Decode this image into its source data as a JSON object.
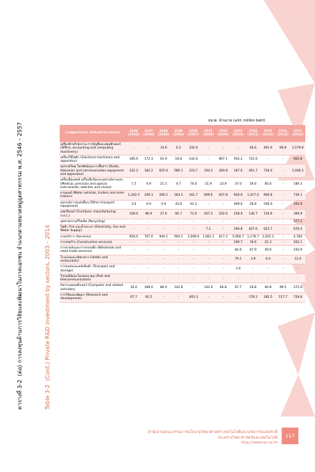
{
  "header": {
    "label_th": "ตารางที่ 3-2",
    "title_th": "(ต่อ) การลงทุนด้านการวิจัยและพัฒนาในภาคเอกชน จำแนกตามหมวดหมู่อุตสาหกรรม พ.ศ. 2546 – 2557",
    "label_en": "Table 3-2",
    "title_en": "(Cont.) Private R&D investment by sectors, 2003 – 2014",
    "unit": "หน่วย: ล้านบาท (unit: million baht)"
  },
  "table": {
    "corner": "ภาคอุตสาหกรรม (Industrial sector)",
    "columns": [
      {
        "th": "2546",
        "en": "(2003)"
      },
      {
        "th": "2547",
        "en": "(2004)"
      },
      {
        "th": "2548",
        "en": "(2005)"
      },
      {
        "th": "2549",
        "en": "(2006)"
      },
      {
        "th": "2550",
        "en": "(2007)"
      },
      {
        "th": "2551",
        "en": "(2008)"
      },
      {
        "th": "2552",
        "en": "(2009)"
      },
      {
        "th": "2553",
        "en": "(2010)"
      },
      {
        "th": "2554",
        "en": "(2011)"
      },
      {
        "th": "2555",
        "en": "(2012)"
      },
      {
        "th": "2556",
        "en": "(2013)"
      },
      {
        "th": "2557",
        "en": "(2014)"
      }
    ],
    "rows": [
      {
        "label": "เครื่องจักรสำนักงาน การบัญชีและคอมพิวเตอร์ (Office, accounting and computing machinery)",
        "values": [
          "-",
          "-",
          "14.6",
          "0.2",
          "332.6",
          "-",
          "-",
          "-",
          "46.6",
          "491.6",
          "69.8",
          "1,579.6"
        ]
      },
      {
        "label": "เครื่องใช้ไฟฟ้า (Electrical machinery and apparatus)",
        "values": [
          "185.6",
          "172.3",
          "61.9",
          "18.6",
          "142.6",
          "-",
          "867.1",
          "932.2",
          "722.6",
          "-",
          "-",
          "602.8"
        ]
      },
      {
        "label": "อุปกรณ์วิทยุ โทรทัศน์และการสื่อสาร (Radio, television and communication equipment and apparatus)",
        "values": [
          "222.2",
          "182.2",
          "625.6",
          "580.1",
          "223.7",
          "194.2",
          "200.8",
          "187.6",
          "461.7",
          "726.0",
          "-",
          "1,006.2"
        ]
      },
      {
        "label": "เครื่องมือแพทย์ เครื่องมือวัดและอุปกรณ์ทางแสง (Medical, precision and optical instruments, watches and clocks)",
        "values": [
          "7.5",
          "4.9",
          "21.1",
          "4.7",
          "70.6",
          "21.9",
          "23.9",
          "37.0",
          "56.6",
          "85.6",
          "-",
          "180.3"
        ]
      },
      {
        "label": "ยานยนต์ (Motor vehicles, trailers and semi-trailers)",
        "values": [
          "1,202.5",
          "169.1",
          "290.1",
          "183.3",
          "161.7",
          "609.6",
          "657.8",
          "920.6",
          "1,017.0",
          "900.8",
          "-",
          "739.1"
        ]
      },
      {
        "label": "อุปกรณ์การขนส่งอื่นๆ (Other transport equipment)",
        "values": [
          "3.6",
          "0.0",
          "0.0",
          "43.8",
          "42.3",
          "-",
          "-",
          "469.6",
          "26.8",
          "500.0",
          "-",
          "162.8"
        ]
      },
      {
        "label": "เฟอร์นิเจอร์ (Furniture; manufacturing n.e.c.)",
        "values": [
          "109.6",
          "96.9",
          "27.6",
          "66.7",
          "71.0",
          "207.2",
          "202.6",
          "258.9",
          "136.7",
          "116.9",
          "-",
          "390.9"
        ]
      },
      {
        "label": "อุตสาหกรรมรีไซเคิล (Recycling)",
        "values": [
          "-",
          "-",
          "-",
          "-",
          "-",
          "-",
          "-",
          "-",
          "-",
          "-",
          "-",
          "377.2"
        ]
      },
      {
        "label": "ไฟฟ้า ก๊าซ และน้ำประปา (Electricity, Gas and Water Supply)",
        "values": [
          "-",
          "-",
          "-",
          "-",
          "-",
          "7.2",
          "-",
          "200.8",
          "427.6",
          "623.7",
          "-",
          "676.4"
        ]
      },
      {
        "label": "ภาคบริการ (Services)",
        "values": [
          "926.0",
          "767.0",
          "944.1",
          "904.1",
          "1,008.6",
          "1,081.1",
          "617.2",
          "5,960.7",
          "1,178.7",
          "1,025.3",
          "-",
          "4,784"
        ]
      },
      {
        "label": "การก่อสร้าง (Construction services)",
        "values": [
          "-",
          "-",
          "-",
          "-",
          "-",
          "-",
          "-",
          "200.7",
          "16.6",
          "21.3",
          "-",
          "162.1"
        ]
      },
      {
        "label": "การขายส่งและการขายปลีก (Wholesale and retail trade services)",
        "values": [
          "-",
          "-",
          "-",
          "-",
          "-",
          "-",
          "-",
          "84.6",
          "67.9",
          "49.0",
          "-",
          "192.9"
        ]
      },
      {
        "label": "โรงแรมและภัตตาคาร (Hotels and restaurants)",
        "values": [
          "-",
          "-",
          "-",
          "-",
          "-",
          "-",
          "-",
          "79.1",
          "3.9",
          "6.0",
          "-",
          "12.0"
        ]
      },
      {
        "label": "การขนส่งและคลังสินค้า (Transport and storage)",
        "values": [
          "-",
          "-",
          "-",
          "-",
          "-",
          "-",
          "-",
          "1.6",
          "-",
          "-",
          "-",
          "-"
        ]
      },
      {
        "label": "ไปรษณีย์และโทรคมนาคม (Post and telecommunication)",
        "values": [
          "-",
          "-",
          "-",
          "-",
          "-",
          "-",
          "-",
          "-",
          "-",
          "-",
          "-",
          "-"
        ]
      },
      {
        "label": "กิจกรรมคอมพิวเตอร์ (Computer and related activities)",
        "values": [
          "30.0",
          "189.0",
          "86.0",
          "142.8",
          "-",
          "142.9",
          "66.8",
          "67.7",
          "29.8",
          "90.8",
          "99.5",
          "272.6"
        ]
      },
      {
        "label": "การวิจัยและพัฒนา (Research and development)",
        "values": [
          "67.7",
          "92.5",
          "-",
          "-",
          "403.3",
          "-",
          "-",
          "-",
          "178.2",
          "182.5",
          "117.7",
          "728.8"
        ]
      }
    ]
  },
  "footer": {
    "line1": "สำนักงานคณะกรรมการนโยบายวิทยาศาสตร์ เทคโนโลยีและนวัตกรรมแห่งชาติ",
    "line2": "กระทรวงวิทยาศาสตร์และเทคโนโลยี",
    "url": "http://www.sti.or.th",
    "page": "117"
  }
}
